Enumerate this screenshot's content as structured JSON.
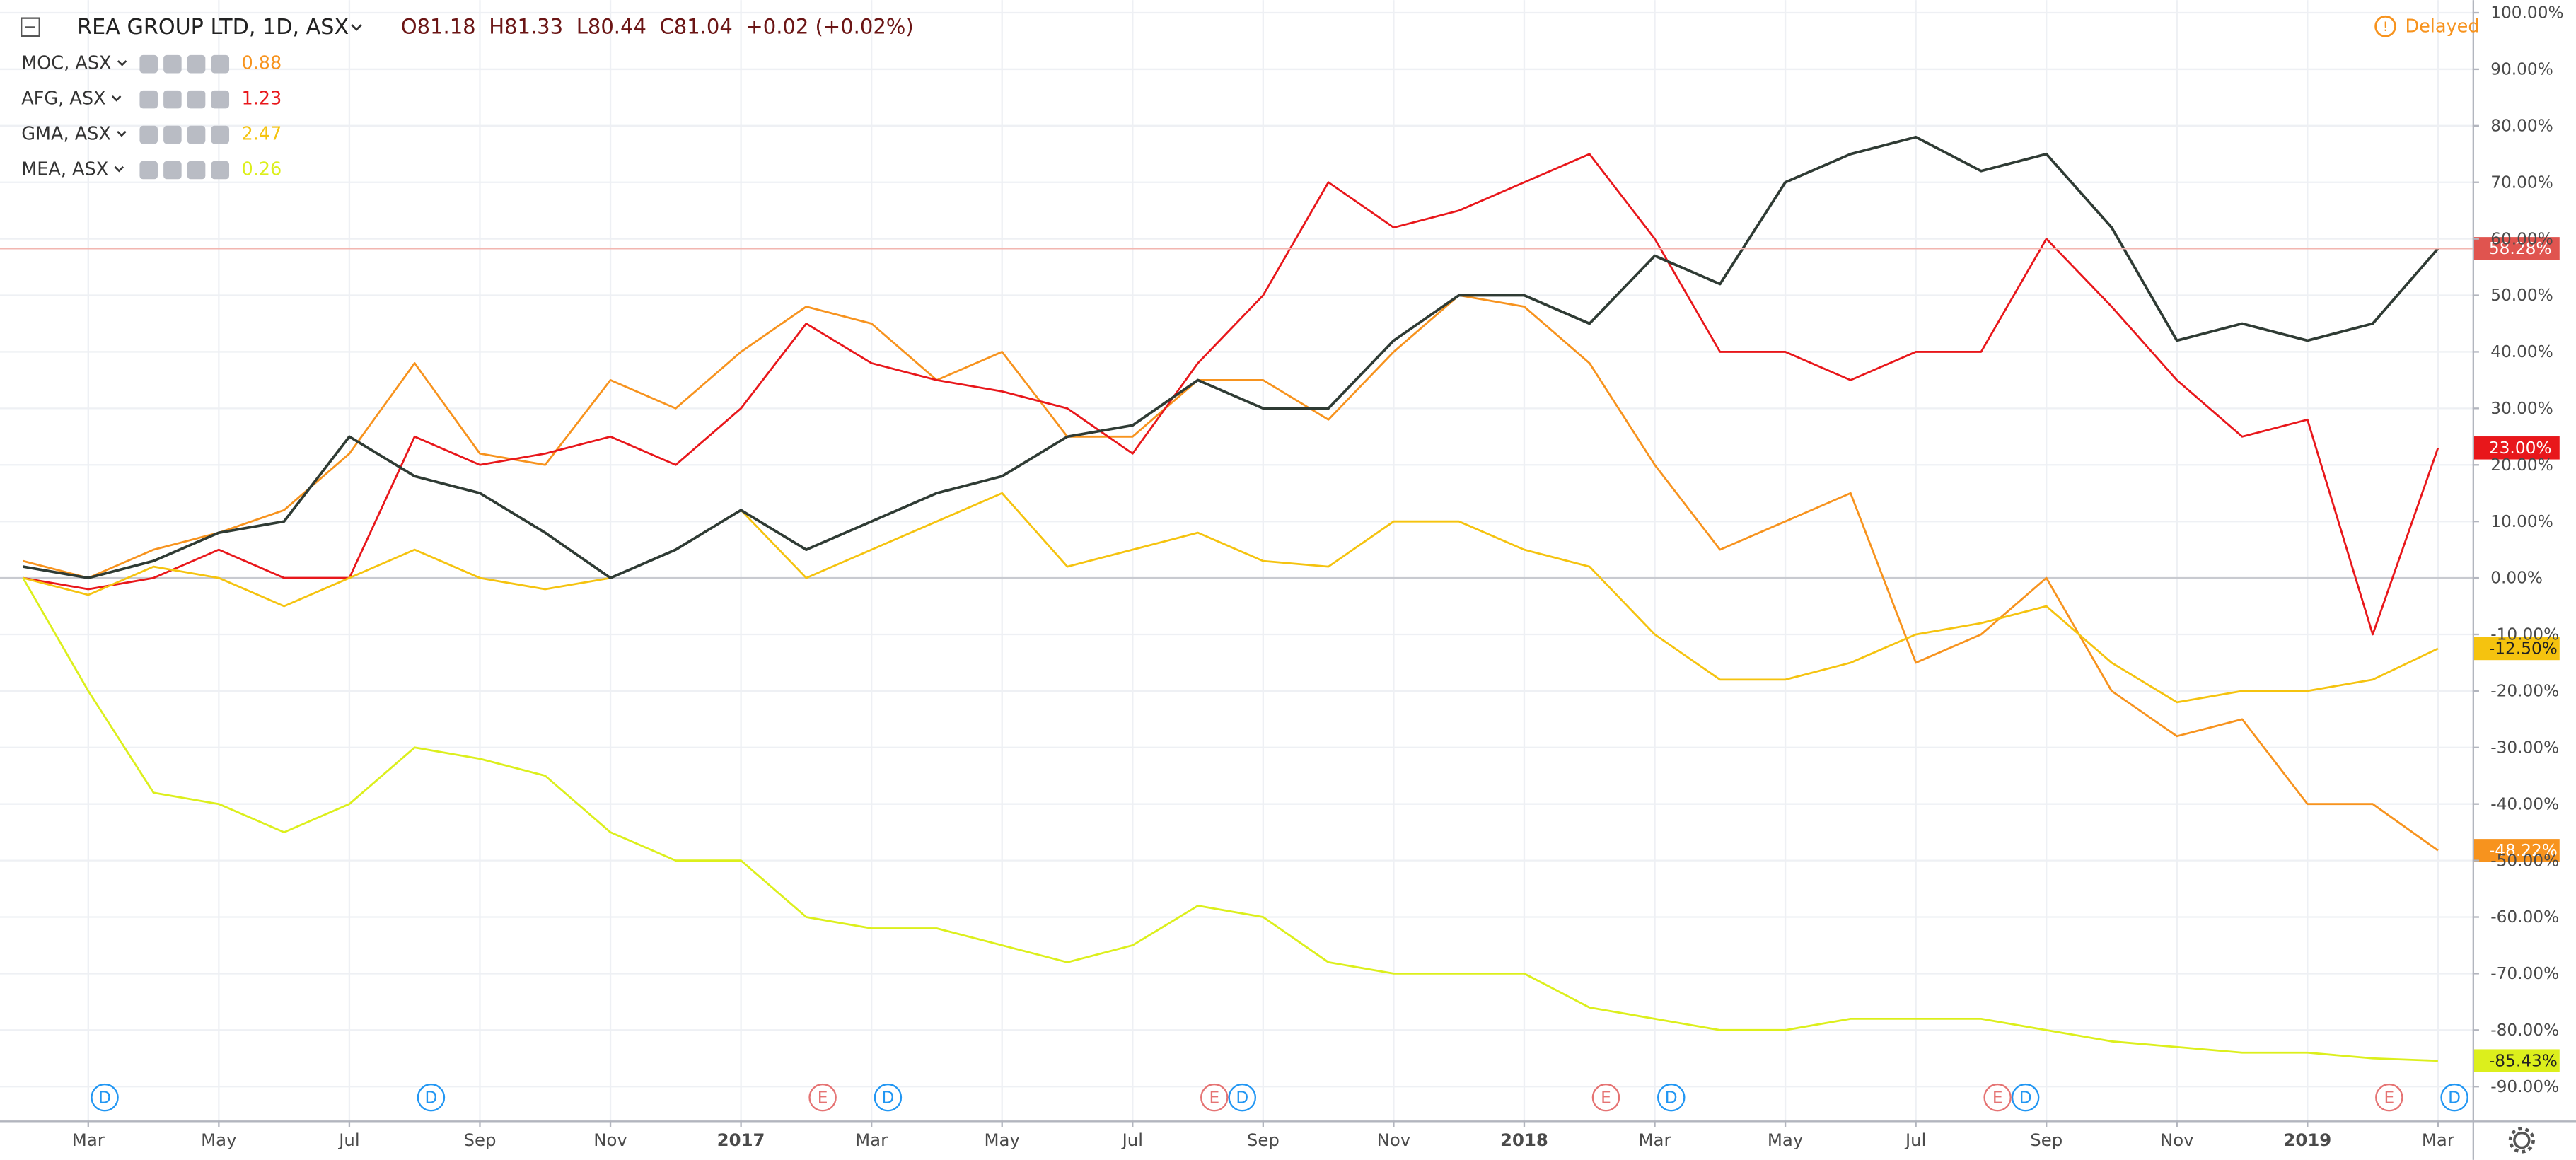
{
  "chart_data": {
    "type": "line",
    "status": "Delayed",
    "ohlc_labels": [
      "O81.18",
      "H81.33",
      "L80.44",
      "C81.04",
      "+0.02 (+0.02%)"
    ],
    "x": [
      "2016-02",
      "2016-03",
      "2016-04",
      "2016-05",
      "2016-06",
      "2016-07",
      "2016-08",
      "2016-09",
      "2016-10",
      "2016-11",
      "2016-12",
      "2017-01",
      "2017-02",
      "2017-03",
      "2017-04",
      "2017-05",
      "2017-06",
      "2017-07",
      "2017-08",
      "2017-09",
      "2017-10",
      "2017-11",
      "2017-12",
      "2018-01",
      "2018-02",
      "2018-03",
      "2018-04",
      "2018-05",
      "2018-06",
      "2018-07",
      "2018-08",
      "2018-09",
      "2018-10",
      "2018-11",
      "2018-12",
      "2019-01",
      "2019-02",
      "2019-03"
    ],
    "xlim": [
      "2016-02",
      "2019-03"
    ],
    "xticks": [
      {
        "value": "2016-03",
        "label": "Mar"
      },
      {
        "value": "2016-05",
        "label": "May"
      },
      {
        "value": "2016-07",
        "label": "Jul"
      },
      {
        "value": "2016-09",
        "label": "Sep"
      },
      {
        "value": "2016-11",
        "label": "Nov"
      },
      {
        "value": "2017-01",
        "label": "2017"
      },
      {
        "value": "2017-03",
        "label": "Mar"
      },
      {
        "value": "2017-05",
        "label": "May"
      },
      {
        "value": "2017-07",
        "label": "Jul"
      },
      {
        "value": "2017-09",
        "label": "Sep"
      },
      {
        "value": "2017-11",
        "label": "Nov"
      },
      {
        "value": "2018-01",
        "label": "2018"
      },
      {
        "value": "2018-03",
        "label": "Mar"
      },
      {
        "value": "2018-05",
        "label": "May"
      },
      {
        "value": "2018-07",
        "label": "Jul"
      },
      {
        "value": "2018-09",
        "label": "Sep"
      },
      {
        "value": "2018-11",
        "label": "Nov"
      },
      {
        "value": "2019-01",
        "label": "2019"
      },
      {
        "value": "2019-03",
        "label": "Mar"
      }
    ],
    "ylim": [
      -96,
      100.5
    ],
    "yticks": [
      {
        "value": 100,
        "label": "100.00%"
      },
      {
        "value": 90,
        "label": "90.00%"
      },
      {
        "value": 80,
        "label": "80.00%"
      },
      {
        "value": 70,
        "label": "70.00%"
      },
      {
        "value": 60,
        "label": "60.00%"
      },
      {
        "value": 50,
        "label": "50.00%"
      },
      {
        "value": 40,
        "label": "40.00%"
      },
      {
        "value": 30,
        "label": "30.00%"
      },
      {
        "value": 20,
        "label": "20.00%"
      },
      {
        "value": 10,
        "label": "10.00%"
      },
      {
        "value": 0,
        "label": "0.00%"
      },
      {
        "value": -10,
        "label": "-10.00%"
      },
      {
        "value": -20,
        "label": "-20.00%"
      },
      {
        "value": -30,
        "label": "-30.00%"
      },
      {
        "value": -40,
        "label": "-40.00%"
      },
      {
        "value": -50,
        "label": "-50.00%"
      },
      {
        "value": -60,
        "label": "-60.00%"
      },
      {
        "value": -70,
        "label": "-70.00%"
      },
      {
        "value": -80,
        "label": "-80.00%"
      },
      {
        "value": -90,
        "label": "-90.00%"
      }
    ],
    "grid": true,
    "series": [
      {
        "name": "REA GROUP LTD, 1D, ASX",
        "color": "#2f3b34",
        "tag_color": "#e0544f",
        "values": [
          2,
          0,
          3,
          8,
          10,
          25,
          18,
          15,
          8,
          0,
          5,
          12,
          5,
          10,
          15,
          18,
          25,
          27,
          35,
          30,
          30,
          42,
          50,
          50,
          45,
          57,
          52,
          70,
          75,
          78,
          72,
          75,
          62,
          42,
          45,
          42,
          45,
          58.28
        ],
        "last_label": {
          "value": 58.28,
          "label": "58.28%"
        }
      },
      {
        "name": "MOC, ASX",
        "color": "#f7931e",
        "legend_value": 0.88,
        "values": [
          3,
          0,
          5,
          8,
          12,
          22,
          38,
          22,
          20,
          35,
          30,
          40,
          48,
          45,
          35,
          40,
          25,
          25,
          35,
          35,
          28,
          40,
          50,
          48,
          38,
          20,
          5,
          10,
          15,
          -15,
          -10,
          0,
          -20,
          -28,
          -25,
          -40,
          -40,
          -48.22
        ],
        "last_label": {
          "value": -48.22,
          "label": "-48.22%"
        }
      },
      {
        "name": "AFG, ASX",
        "color": "#e8171b",
        "legend_value": 1.23,
        "values": [
          0,
          -2,
          0,
          5,
          0,
          0,
          25,
          20,
          22,
          25,
          20,
          30,
          45,
          38,
          35,
          33,
          30,
          22,
          38,
          50,
          70,
          62,
          65,
          70,
          75,
          60,
          40,
          40,
          35,
          40,
          40,
          60,
          48,
          35,
          25,
          28,
          -10,
          23
        ],
        "last_label": {
          "value": 23,
          "label": "23.00%"
        }
      },
      {
        "name": "GMA, ASX",
        "color": "#f5c30f",
        "legend_value": 2.47,
        "values": [
          0,
          -3,
          2,
          0,
          -5,
          0,
          5,
          0,
          -2,
          0,
          5,
          12,
          0,
          5,
          10,
          15,
          2,
          5,
          8,
          3,
          2,
          10,
          10,
          5,
          2,
          -10,
          -18,
          -18,
          -15,
          -10,
          -8,
          -5,
          -15,
          -22,
          -20,
          -20,
          -18,
          -12.5
        ],
        "last_label": {
          "value": -12.5,
          "label": "-12.50%"
        }
      },
      {
        "name": "MEA, ASX",
        "color": "#dcef1c",
        "legend_value": 0.26,
        "values": [
          0,
          -20,
          -38,
          -40,
          -45,
          -40,
          -30,
          -32,
          -35,
          -45,
          -50,
          -50,
          -60,
          -62,
          -62,
          -65,
          -68,
          -65,
          -58,
          -60,
          -68,
          -70,
          -70,
          -70,
          -76,
          -78,
          -80,
          -80,
          -78,
          -78,
          -78,
          -80,
          -82,
          -83,
          -84,
          -84,
          -85,
          -85.43
        ],
        "last_label": {
          "value": -85.43,
          "label": "-85.43%"
        }
      }
    ],
    "events": [
      {
        "label": "D",
        "x": "2016-03"
      },
      {
        "label": "D",
        "x": "2016-08"
      },
      {
        "label": "E",
        "x": "2017-02"
      },
      {
        "label": "D",
        "x": "2017-03"
      },
      {
        "label": "E",
        "x": "2017-08"
      },
      {
        "label": "D",
        "x": "2017-08"
      },
      {
        "label": "E",
        "x": "2018-02"
      },
      {
        "label": "D",
        "x": "2018-03"
      },
      {
        "label": "E",
        "x": "2018-08"
      },
      {
        "label": "D",
        "x": "2018-08"
      },
      {
        "label": "E",
        "x": "2019-02"
      },
      {
        "label": "D",
        "x": "2019-03"
      }
    ]
  }
}
